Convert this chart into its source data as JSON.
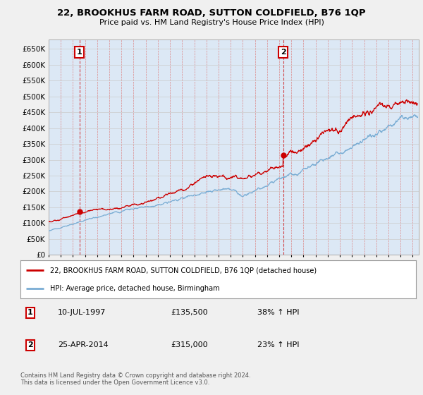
{
  "title": "22, BROOKHUS FARM ROAD, SUTTON COLDFIELD, B76 1QP",
  "subtitle": "Price paid vs. HM Land Registry's House Price Index (HPI)",
  "ylim": [
    0,
    680000
  ],
  "ytick_vals": [
    0,
    50000,
    100000,
    150000,
    200000,
    250000,
    300000,
    350000,
    400000,
    450000,
    500000,
    550000,
    600000,
    650000
  ],
  "xmin": 1995.0,
  "xmax": 2025.5,
  "purchase1": {
    "date": 1997.53,
    "price": 135500,
    "label": "1"
  },
  "purchase2": {
    "date": 2014.32,
    "price": 315000,
    "label": "2"
  },
  "red_line_color": "#cc0000",
  "blue_line_color": "#7aadd4",
  "legend1": "22, BROOKHUS FARM ROAD, SUTTON COLDFIELD, B76 1QP (detached house)",
  "legend2": "HPI: Average price, detached house, Birmingham",
  "annot1_date": "10-JUL-1997",
  "annot1_price": "£135,500",
  "annot1_hpi": "38% ↑ HPI",
  "annot2_date": "25-APR-2014",
  "annot2_price": "£315,000",
  "annot2_hpi": "23% ↑ HPI",
  "footnote": "Contains HM Land Registry data © Crown copyright and database right 2024.\nThis data is licensed under the Open Government Licence v3.0.",
  "bg_color": "#f0f0f0",
  "grid_color_h": "#cccccc",
  "grid_color_v": "#dd8888",
  "plot_bg": "#dce8f5"
}
